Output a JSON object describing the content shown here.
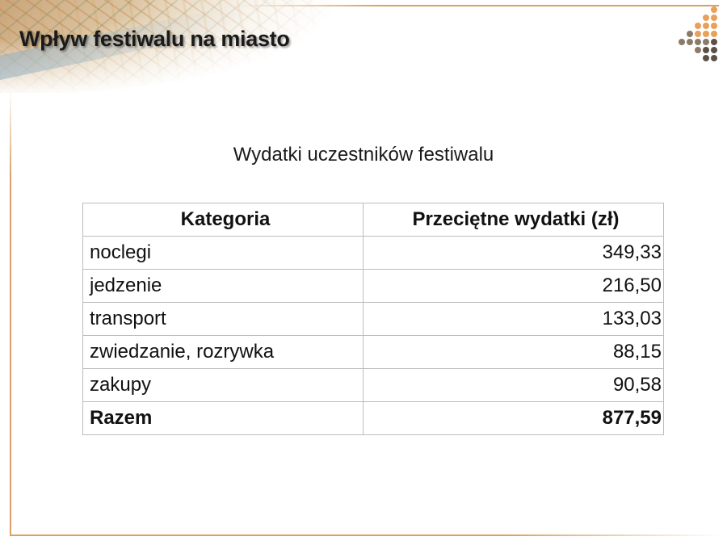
{
  "slide": {
    "title": "Wpływ festiwalu na miasto",
    "subtitle": "Wydatki uczestników festiwalu"
  },
  "table": {
    "headers": [
      "Kategoria",
      "Przeciętne wydatki (zł)"
    ],
    "rows": [
      {
        "category": "noclegi",
        "value": "349,33"
      },
      {
        "category": "jedzenie",
        "value": "216,50"
      },
      {
        "category": "transport",
        "value": "133,03"
      },
      {
        "category": "zwiedzanie, rozrywka",
        "value": "88,15"
      },
      {
        "category": "zakupy",
        "value": "90,58"
      }
    ],
    "total": {
      "category": "Razem",
      "value": "877,59"
    }
  },
  "colors": {
    "accent_orange": "#d9a067",
    "dot_orange": "#e8a05a",
    "dot_brown": "#8a7a6a",
    "dot_dark": "#5c5048"
  },
  "decor": {
    "map_banner_icon": "city-map-graphic",
    "dots_icon": "dot-cluster-graphic"
  }
}
